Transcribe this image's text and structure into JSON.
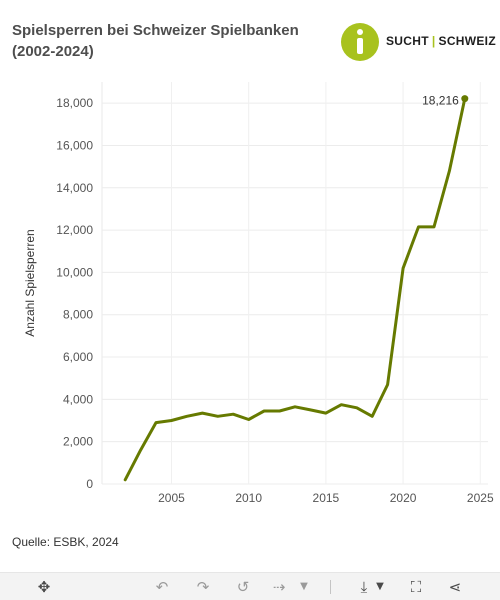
{
  "header": {
    "title": "Spielsperren bei Schweizer Spielbanken (2002-2024)"
  },
  "logo": {
    "brand_left": "SUCHT",
    "separator": "|",
    "brand_right": "SCHWEIZ",
    "color": "#a8c21e"
  },
  "chart_data": {
    "type": "line",
    "title": "Spielsperren bei Schweizer Spielbanken (2002-2024)",
    "xlabel": "",
    "ylabel": "Anzahl Spielsperren",
    "xlim": [
      2000.5,
      2025.5
    ],
    "ylim": [
      0,
      19000
    ],
    "x_ticks": [
      2005,
      2010,
      2015,
      2020,
      2025
    ],
    "x_tick_labels": [
      "2005",
      "2010",
      "2015",
      "2020",
      "2025"
    ],
    "y_ticks": [
      0,
      2000,
      4000,
      6000,
      8000,
      10000,
      12000,
      14000,
      16000,
      18000
    ],
    "y_tick_labels": [
      "0",
      "2,000",
      "4,000",
      "6,000",
      "8,000",
      "10,000",
      "12,000",
      "14,000",
      "16,000",
      "18,000"
    ],
    "grid": true,
    "legend": "none",
    "series": [
      {
        "color": "#667a00",
        "x": [
          2002,
          2003,
          2004,
          2005,
          2006,
          2007,
          2008,
          2009,
          2010,
          2011,
          2012,
          2013,
          2014,
          2015,
          2016,
          2017,
          2018,
          2019,
          2020,
          2021,
          2022,
          2023,
          2024
        ],
        "y": [
          200,
          1600,
          2900,
          3000,
          3200,
          3350,
          3200,
          3300,
          3050,
          3450,
          3450,
          3650,
          3500,
          3350,
          3750,
          3600,
          3200,
          4700,
          10200,
          12150,
          12150,
          14800,
          18216
        ]
      }
    ],
    "annotations": [
      {
        "x": 2024,
        "y": 18216,
        "text": "18,216"
      }
    ]
  },
  "footer": {
    "source": "Quelle: ESBK, 2024"
  },
  "toolbar": {
    "move_icon": "move-arrows-icon",
    "undo_icon": "undo-icon",
    "redo_icon": "redo-icon",
    "reset_icon": "reset-icon",
    "forward_icon": "forward-icon",
    "dropdown_icon": "caret-down-icon",
    "download_icon": "download-icon",
    "fullscreen_icon": "fullscreen-icon",
    "share_icon": "share-icon"
  }
}
